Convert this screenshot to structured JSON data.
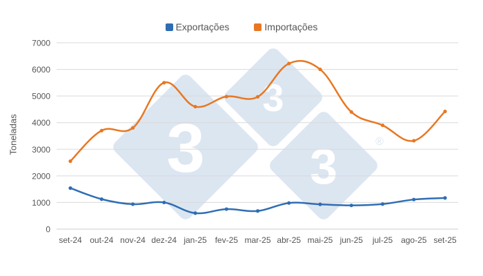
{
  "chart_data": {
    "type": "line",
    "title": "",
    "xlabel": "",
    "ylabel": "Toneladas",
    "ylim": [
      0,
      7000
    ],
    "yticks": [
      0,
      1000,
      2000,
      3000,
      4000,
      5000,
      6000,
      7000
    ],
    "grid": true,
    "legend_position": "top",
    "categories": [
      "set-24",
      "out-24",
      "nov-24",
      "dez-24",
      "jan-25",
      "fev-25",
      "mar-25",
      "abr-25",
      "mai-25",
      "jun-25",
      "jul-25",
      "ago-25",
      "set-25"
    ],
    "series": [
      {
        "name": "Exportações",
        "color": "#2e6db4",
        "values": [
          1540,
          1125,
          935,
          1000,
          600,
          750,
          680,
          980,
          930,
          890,
          940,
          1110,
          1170
        ]
      },
      {
        "name": "Importações",
        "color": "#e87722",
        "values": [
          2550,
          3700,
          3800,
          5500,
          4600,
          4980,
          4970,
          6220,
          6000,
          4400,
          3900,
          3320,
          4420
        ]
      }
    ],
    "watermark": {
      "glyph": "3",
      "registered_mark": "®",
      "color": "#dce6f1"
    }
  },
  "legend": {
    "items": [
      {
        "label": "Exportações",
        "color": "#2e6db4"
      },
      {
        "label": "Importações",
        "color": "#e87722"
      }
    ]
  },
  "axis": {
    "y_title": "Toneladas"
  }
}
